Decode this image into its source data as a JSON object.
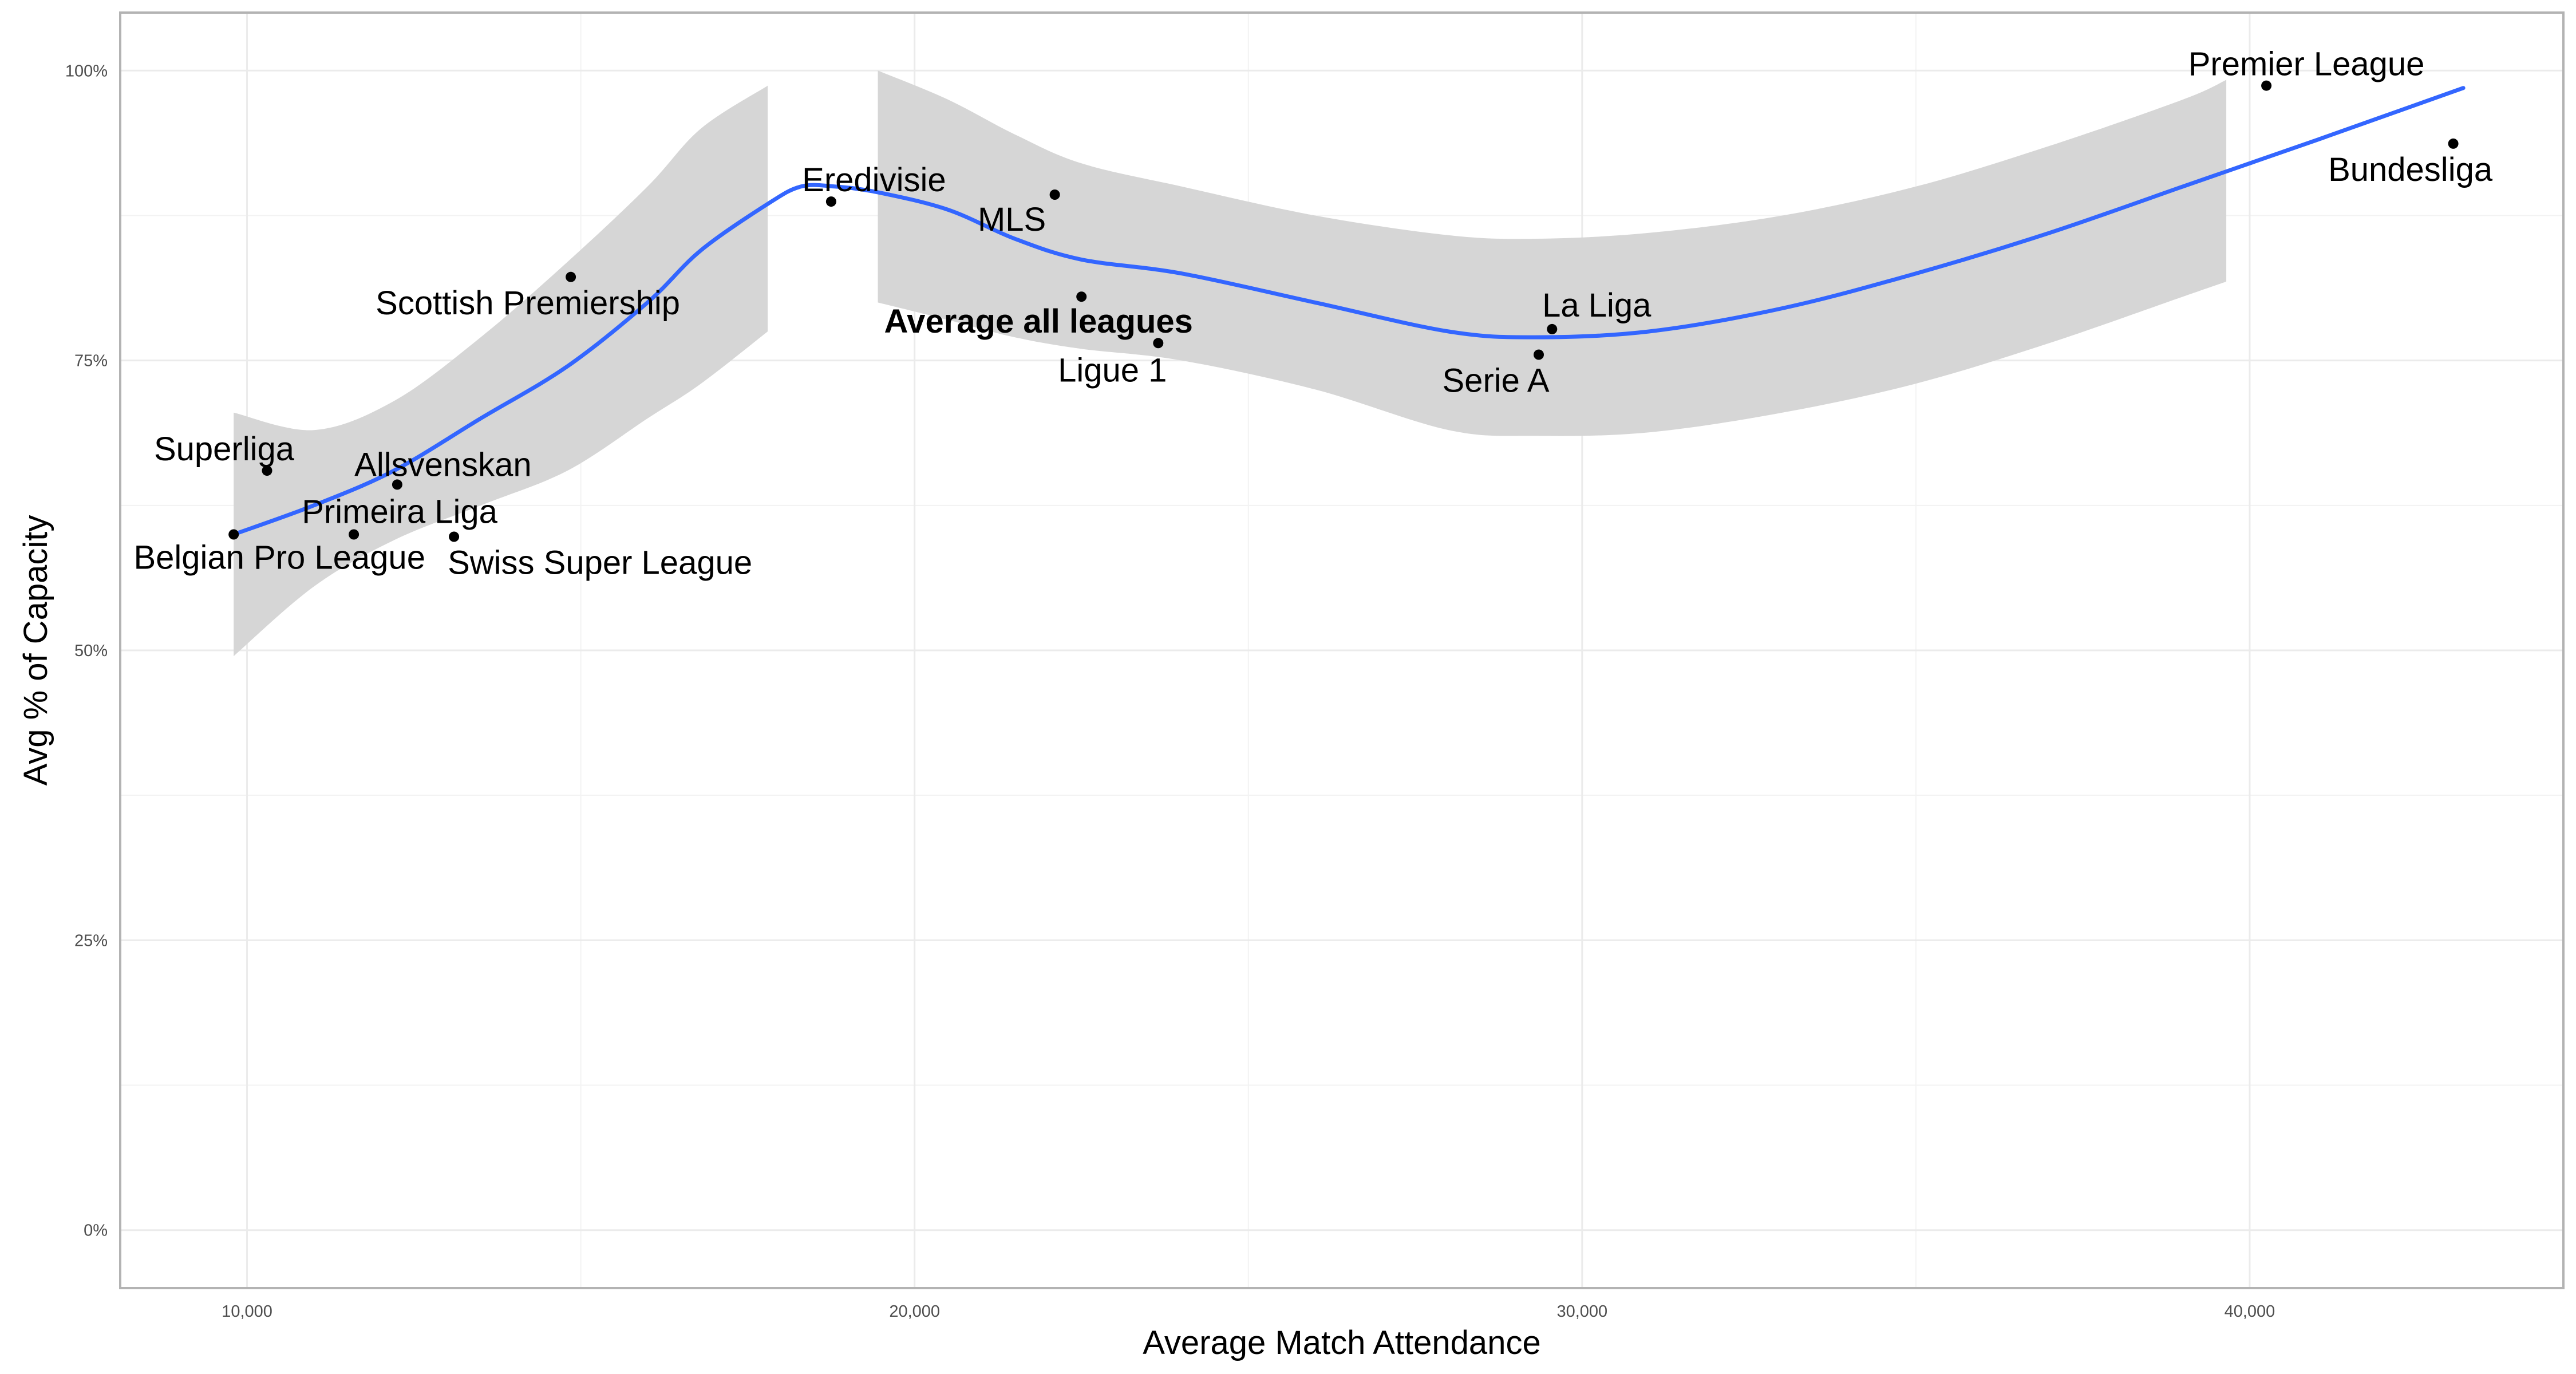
{
  "chart_data": {
    "type": "scatter",
    "title": "",
    "xlabel": "Average Match Attendance",
    "ylabel": "Avg % of Capacity",
    "xlim": [
      8100,
      44700
    ],
    "ylim": [
      -5,
      105
    ],
    "x_ticks": [
      10000,
      20000,
      30000,
      40000
    ],
    "x_tick_labels": [
      "10,000",
      "20,000",
      "30,000",
      "40,000"
    ],
    "y_ticks": [
      0,
      25,
      50,
      75,
      100
    ],
    "y_tick_labels": [
      "0%",
      "25%",
      "50%",
      "75%",
      "100%"
    ],
    "grid": true,
    "legend": "none",
    "points": [
      {
        "label": "Belgian Pro League",
        "x": 9800,
        "y": 60.0,
        "bold": false
      },
      {
        "label": "Superliga",
        "x": 10300,
        "y": 65.5,
        "bold": false
      },
      {
        "label": "Primeira Liga",
        "x": 11600,
        "y": 60.0,
        "bold": false
      },
      {
        "label": "Allsvenskan",
        "x": 12250,
        "y": 64.3,
        "bold": false
      },
      {
        "label": "Swiss Super League",
        "x": 13100,
        "y": 59.8,
        "bold": false
      },
      {
        "label": "Scottish Premiership",
        "x": 14850,
        "y": 82.2,
        "bold": false
      },
      {
        "label": "Eredivisie",
        "x": 18750,
        "y": 88.7,
        "bold": false
      },
      {
        "label": "MLS",
        "x": 22100,
        "y": 89.3,
        "bold": false
      },
      {
        "label": "Average all leagues",
        "x": 22500,
        "y": 80.5,
        "bold": true
      },
      {
        "label": "Ligue 1",
        "x": 23650,
        "y": 76.5,
        "bold": false
      },
      {
        "label": "Serie A",
        "x": 29350,
        "y": 75.5,
        "bold": false
      },
      {
        "label": "La Liga",
        "x": 29550,
        "y": 77.7,
        "bold": false
      },
      {
        "label": "Premier League",
        "x": 40250,
        "y": 98.7,
        "bold": false
      },
      {
        "label": "Bundesliga",
        "x": 43050,
        "y": 93.7,
        "bold": false
      }
    ],
    "smooth": {
      "method": "loess",
      "color": "#3366FF",
      "band_color": "#d6d6d6",
      "segments": [
        {
          "x": [
            9800,
            11000,
            12200,
            13500,
            14800,
            16000,
            16800,
            17800,
            18300,
            18800
          ],
          "y": [
            60.0,
            62.5,
            65.5,
            70.0,
            74.5,
            80.0,
            84.5,
            88.5,
            90.0,
            90.0
          ],
          "ymin": [
            49.5,
            55.5,
            59.5,
            62.5,
            65.5,
            70.0,
            73.0,
            77.5,
            null,
            null
          ],
          "ymax": [
            70.5,
            69.0,
            71.5,
            77.0,
            83.5,
            90.0,
            95.0,
            98.7,
            null,
            null
          ]
        },
        {
          "x": [
            18800,
            19450,
            20500,
            21500,
            22500,
            24000,
            26000,
            28000,
            29300,
            31000,
            33000,
            35000,
            37000,
            39000,
            39650,
            41000,
            43200
          ],
          "y": [
            90.0,
            89.5,
            88.0,
            85.5,
            83.7,
            82.5,
            80.0,
            77.5,
            77.0,
            77.5,
            79.5,
            82.5,
            86.0,
            90.0,
            91.3,
            94.0,
            98.5
          ],
          "ymin": [
            null,
            80.0,
            78.5,
            77.0,
            76.0,
            75.0,
            72.5,
            69.0,
            68.5,
            68.8,
            70.5,
            73.0,
            76.5,
            80.5,
            81.8,
            null,
            null
          ],
          "ymax": [
            null,
            100.0,
            97.5,
            94.5,
            92.0,
            90.0,
            87.5,
            85.8,
            85.5,
            86.0,
            87.5,
            90.0,
            93.5,
            97.5,
            99.2,
            null,
            null
          ]
        }
      ]
    }
  }
}
